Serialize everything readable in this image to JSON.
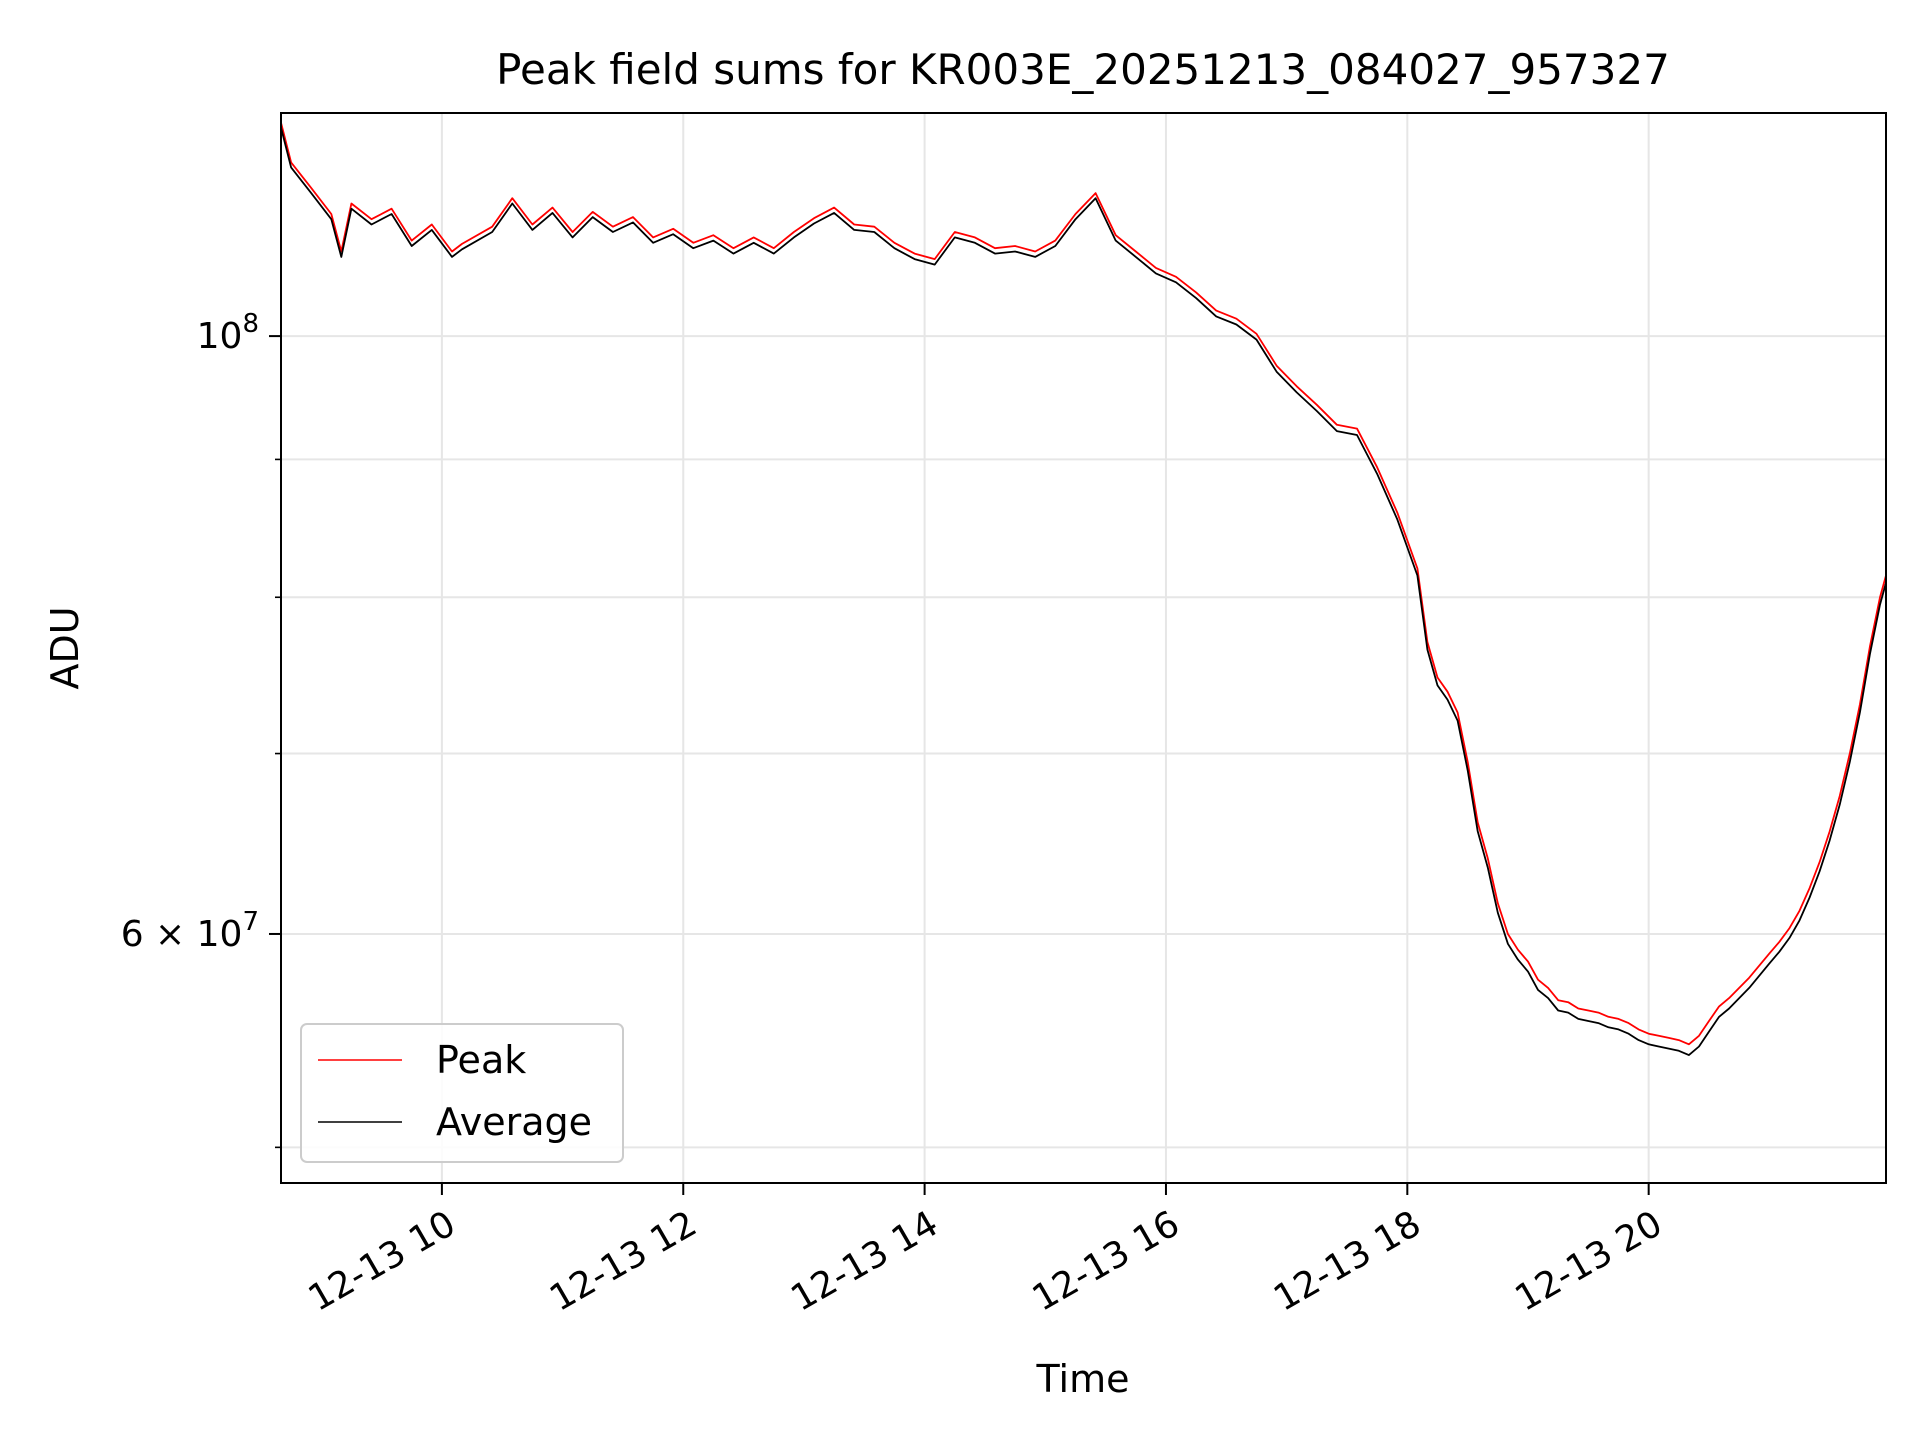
{
  "chart_data": {
    "type": "line",
    "title": "Peak field sums for KR003E_20251213_084027_957327",
    "xlabel": "Time",
    "ylabel": "ADU",
    "x_axis": {
      "kind": "time",
      "date": "2025-12-13",
      "range": [
        "2025-12-13 08:40",
        "2025-12-13 21:58"
      ],
      "ticks": [
        {
          "value": "2025-12-13 10:00",
          "label": "12-13 10"
        },
        {
          "value": "2025-12-13 12:00",
          "label": "12-13 12"
        },
        {
          "value": "2025-12-13 14:00",
          "label": "12-13 14"
        },
        {
          "value": "2025-12-13 16:00",
          "label": "12-13 16"
        },
        {
          "value": "2025-12-13 18:00",
          "label": "12-13 18"
        },
        {
          "value": "2025-12-13 20:00",
          "label": "12-13 20"
        }
      ]
    },
    "y_axis": {
      "scale": "log",
      "range": [
        48500000,
        121000000
      ],
      "major_ticks": [
        {
          "value": 100000000,
          "label_base": "10",
          "label_exp": "8"
        },
        {
          "value": 60000000,
          "label_base": "6 × 10",
          "label_exp": "7"
        }
      ],
      "minor_ticks": [
        50000000,
        70000000,
        80000000,
        90000000
      ]
    },
    "grid": true,
    "legend": {
      "position": "lower-left",
      "entries": [
        "Peak",
        "Average"
      ]
    },
    "series": [
      {
        "name": "Peak",
        "color": "#ff0000",
        "points": [
          [
            "08:40",
            120000000
          ],
          [
            "08:45",
            116000000
          ],
          [
            "08:55",
            113500000
          ],
          [
            "09:05",
            111000000
          ],
          [
            "09:10",
            107500000
          ],
          [
            "09:15",
            112000000
          ],
          [
            "09:25",
            110500000
          ],
          [
            "09:35",
            111500000
          ],
          [
            "09:45",
            108500000
          ],
          [
            "09:55",
            110000000
          ],
          [
            "10:05",
            107500000
          ],
          [
            "10:10",
            108200000
          ],
          [
            "10:25",
            109800000
          ],
          [
            "10:35",
            112500000
          ],
          [
            "10:45",
            110000000
          ],
          [
            "10:55",
            111600000
          ],
          [
            "11:05",
            109300000
          ],
          [
            "11:15",
            111200000
          ],
          [
            "11:25",
            109800000
          ],
          [
            "11:35",
            110700000
          ],
          [
            "11:45",
            108800000
          ],
          [
            "11:55",
            109600000
          ],
          [
            "12:05",
            108300000
          ],
          [
            "12:15",
            109000000
          ],
          [
            "12:25",
            107800000
          ],
          [
            "12:35",
            108800000
          ],
          [
            "12:45",
            107800000
          ],
          [
            "12:55",
            109300000
          ],
          [
            "13:05",
            110600000
          ],
          [
            "13:15",
            111600000
          ],
          [
            "13:25",
            110000000
          ],
          [
            "13:35",
            109800000
          ],
          [
            "13:45",
            108300000
          ],
          [
            "13:55",
            107300000
          ],
          [
            "14:05",
            106800000
          ],
          [
            "14:15",
            109300000
          ],
          [
            "14:25",
            108800000
          ],
          [
            "14:35",
            107800000
          ],
          [
            "14:45",
            108000000
          ],
          [
            "14:55",
            107500000
          ],
          [
            "15:05",
            108500000
          ],
          [
            "15:15",
            111000000
          ],
          [
            "15:25",
            113000000
          ],
          [
            "15:35",
            109000000
          ],
          [
            "15:45",
            107500000
          ],
          [
            "15:55",
            106000000
          ],
          [
            "16:05",
            105200000
          ],
          [
            "16:15",
            103800000
          ],
          [
            "16:25",
            102200000
          ],
          [
            "16:35",
            101500000
          ],
          [
            "16:45",
            100200000
          ],
          [
            "16:55",
            97500000
          ],
          [
            "17:05",
            95800000
          ],
          [
            "17:15",
            94300000
          ],
          [
            "17:25",
            92700000
          ],
          [
            "17:35",
            92400000
          ],
          [
            "17:45",
            89400000
          ],
          [
            "17:55",
            86000000
          ],
          [
            "18:05",
            82000000
          ],
          [
            "18:10",
            77000000
          ],
          [
            "18:15",
            74700000
          ],
          [
            "18:20",
            73800000
          ],
          [
            "18:25",
            72500000
          ],
          [
            "18:30",
            69500000
          ],
          [
            "18:35",
            66000000
          ],
          [
            "18:40",
            64000000
          ],
          [
            "18:45",
            61600000
          ],
          [
            "18:50",
            60000000
          ],
          [
            "18:55",
            59200000
          ],
          [
            "19:00",
            58600000
          ],
          [
            "19:05",
            57700000
          ],
          [
            "19:10",
            57300000
          ],
          [
            "19:15",
            56700000
          ],
          [
            "19:20",
            56600000
          ],
          [
            "19:25",
            56300000
          ],
          [
            "19:30",
            56200000
          ],
          [
            "19:35",
            56100000
          ],
          [
            "19:40",
            55900000
          ],
          [
            "19:45",
            55800000
          ],
          [
            "19:50",
            55600000
          ],
          [
            "19:55",
            55300000
          ],
          [
            "20:00",
            55100000
          ],
          [
            "20:05",
            55000000
          ],
          [
            "20:10",
            54900000
          ],
          [
            "20:15",
            54800000
          ],
          [
            "20:20",
            54600000
          ],
          [
            "20:25",
            55000000
          ],
          [
            "20:30",
            55700000
          ],
          [
            "20:35",
            56400000
          ],
          [
            "20:40",
            56800000
          ],
          [
            "20:45",
            57300000
          ],
          [
            "20:50",
            57800000
          ],
          [
            "20:55",
            58400000
          ],
          [
            "21:00",
            59000000
          ],
          [
            "21:05",
            59600000
          ],
          [
            "21:10",
            60300000
          ],
          [
            "21:15",
            61200000
          ],
          [
            "21:20",
            62400000
          ],
          [
            "21:25",
            63800000
          ],
          [
            "21:30",
            65500000
          ],
          [
            "21:35",
            67500000
          ],
          [
            "21:40",
            70000000
          ],
          [
            "21:45",
            73000000
          ],
          [
            "21:50",
            76700000
          ],
          [
            "21:55",
            80000000
          ],
          [
            "21:58",
            81500000
          ]
        ]
      },
      {
        "name": "Average",
        "color": "#000000",
        "points": [
          [
            "08:40",
            119500000
          ],
          [
            "08:45",
            115500000
          ],
          [
            "08:55",
            113000000
          ],
          [
            "09:05",
            110500000
          ],
          [
            "09:10",
            107000000
          ],
          [
            "09:15",
            111500000
          ],
          [
            "09:25",
            110000000
          ],
          [
            "09:35",
            111000000
          ],
          [
            "09:45",
            108000000
          ],
          [
            "09:55",
            109500000
          ],
          [
            "10:05",
            107000000
          ],
          [
            "10:10",
            107700000
          ],
          [
            "10:25",
            109300000
          ],
          [
            "10:35",
            112000000
          ],
          [
            "10:45",
            109500000
          ],
          [
            "10:55",
            111100000
          ],
          [
            "11:05",
            108800000
          ],
          [
            "11:15",
            110700000
          ],
          [
            "11:25",
            109300000
          ],
          [
            "11:35",
            110200000
          ],
          [
            "11:45",
            108300000
          ],
          [
            "11:55",
            109100000
          ],
          [
            "12:05",
            107800000
          ],
          [
            "12:15",
            108500000
          ],
          [
            "12:25",
            107300000
          ],
          [
            "12:35",
            108300000
          ],
          [
            "12:45",
            107300000
          ],
          [
            "12:55",
            108800000
          ],
          [
            "13:05",
            110100000
          ],
          [
            "13:15",
            111100000
          ],
          [
            "13:25",
            109500000
          ],
          [
            "13:35",
            109300000
          ],
          [
            "13:45",
            107800000
          ],
          [
            "13:55",
            106800000
          ],
          [
            "14:05",
            106300000
          ],
          [
            "14:15",
            108800000
          ],
          [
            "14:25",
            108300000
          ],
          [
            "14:35",
            107300000
          ],
          [
            "14:45",
            107500000
          ],
          [
            "14:55",
            107000000
          ],
          [
            "15:05",
            108000000
          ],
          [
            "15:15",
            110500000
          ],
          [
            "15:25",
            112500000
          ],
          [
            "15:35",
            108500000
          ],
          [
            "15:45",
            107000000
          ],
          [
            "15:55",
            105500000
          ],
          [
            "16:05",
            104700000
          ],
          [
            "16:15",
            103300000
          ],
          [
            "16:25",
            101700000
          ],
          [
            "16:35",
            101000000
          ],
          [
            "16:45",
            99700000
          ],
          [
            "16:55",
            97000000
          ],
          [
            "17:05",
            95300000
          ],
          [
            "17:15",
            93800000
          ],
          [
            "17:25",
            92200000
          ],
          [
            "17:35",
            91900000
          ],
          [
            "17:45",
            88900000
          ],
          [
            "17:55",
            85500000
          ],
          [
            "18:05",
            81500000
          ],
          [
            "18:10",
            76500000
          ],
          [
            "18:15",
            74200000
          ],
          [
            "18:20",
            73300000
          ],
          [
            "18:25",
            72000000
          ],
          [
            "18:30",
            69000000
          ],
          [
            "18:35",
            65500000
          ],
          [
            "18:40",
            63500000
          ],
          [
            "18:45",
            61100000
          ],
          [
            "18:50",
            59500000
          ],
          [
            "18:55",
            58700000
          ],
          [
            "19:00",
            58100000
          ],
          [
            "19:05",
            57200000
          ],
          [
            "19:10",
            56800000
          ],
          [
            "19:15",
            56200000
          ],
          [
            "19:20",
            56100000
          ],
          [
            "19:25",
            55800000
          ],
          [
            "19:30",
            55700000
          ],
          [
            "19:35",
            55600000
          ],
          [
            "19:40",
            55400000
          ],
          [
            "19:45",
            55300000
          ],
          [
            "19:50",
            55100000
          ],
          [
            "19:55",
            54800000
          ],
          [
            "20:00",
            54600000
          ],
          [
            "20:05",
            54500000
          ],
          [
            "20:10",
            54400000
          ],
          [
            "20:15",
            54300000
          ],
          [
            "20:20",
            54100000
          ],
          [
            "20:25",
            54500000
          ],
          [
            "20:30",
            55200000
          ],
          [
            "20:35",
            55900000
          ],
          [
            "20:40",
            56300000
          ],
          [
            "20:45",
            56800000
          ],
          [
            "20:50",
            57300000
          ],
          [
            "20:55",
            57900000
          ],
          [
            "21:00",
            58500000
          ],
          [
            "21:05",
            59100000
          ],
          [
            "21:10",
            59800000
          ],
          [
            "21:15",
            60700000
          ],
          [
            "21:20",
            61900000
          ],
          [
            "21:25",
            63300000
          ],
          [
            "21:30",
            65000000
          ],
          [
            "21:35",
            67000000
          ],
          [
            "21:40",
            69500000
          ],
          [
            "21:45",
            72500000
          ],
          [
            "21:50",
            76200000
          ],
          [
            "21:55",
            79500000
          ],
          [
            "21:58",
            81000000
          ]
        ]
      }
    ]
  }
}
